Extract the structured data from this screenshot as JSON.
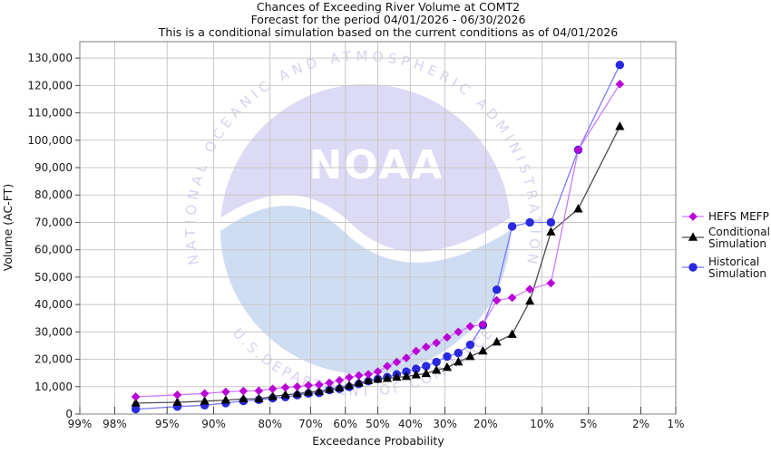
{
  "title": {
    "line1": "Chances of Exceeding River Volume at COMT2",
    "line2": "Forecast for the period 04/01/2026 - 06/30/2026",
    "line3": "This is a conditional simulation based on the current conditions as of 04/01/2026"
  },
  "watermark": {
    "ring_top": "NATIONAL OCEANIC AND ATMOSPHERIC ADMINISTRATION",
    "ring_bottom": "U.S.DEPARTMENT OF COMMERCE",
    "noaa_text": "NOAA"
  },
  "chart_data": {
    "type": "line",
    "title": "Chances of Exceeding River Volume at COMT2",
    "xlabel": "Exceedance Probability",
    "ylabel": "Volume (AC-FT)",
    "x_scale": "normal-probability",
    "x_axis_reversed": true,
    "grid": true,
    "legend_position": "right-outside",
    "x_tick_percents": [
      99,
      98,
      95,
      90,
      80,
      70,
      60,
      50,
      40,
      30,
      20,
      10,
      5,
      2,
      1
    ],
    "y_ticks": [
      0,
      10000,
      20000,
      30000,
      40000,
      50000,
      60000,
      70000,
      80000,
      90000,
      100000,
      110000,
      120000,
      130000
    ],
    "ylim": [
      0,
      136000
    ],
    "probabilities_percent": [
      97.06,
      94.12,
      91.18,
      88.24,
      85.29,
      82.35,
      79.41,
      76.47,
      73.53,
      70.59,
      67.65,
      64.71,
      61.76,
      58.82,
      55.88,
      52.94,
      50.0,
      47.06,
      44.12,
      41.18,
      38.24,
      35.29,
      32.35,
      29.41,
      26.47,
      23.53,
      20.59,
      17.65,
      14.71,
      11.76,
      8.82,
      5.88,
      2.94
    ],
    "series": [
      {
        "name": "HEFS MEFP",
        "legend_lines": [
          "HEFS MEFP"
        ],
        "marker": "diamond",
        "marker_color": "#ba00d6",
        "line_color": "#cf7aff",
        "values": [
          6300,
          7000,
          7500,
          8100,
          8400,
          8500,
          9200,
          9700,
          10000,
          10500,
          10700,
          11400,
          12300,
          13400,
          14100,
          14500,
          15500,
          17500,
          19000,
          20500,
          23000,
          24500,
          26000,
          28000,
          30000,
          32000,
          32700,
          41500,
          42500,
          45600,
          47800,
          96500,
          120500
        ]
      },
      {
        "name": "Conditional Simulation",
        "legend_lines": [
          "Conditional",
          "Simulation"
        ],
        "marker": "triangle",
        "marker_color": "#000000",
        "line_color": "#4d4d4d",
        "values": [
          4000,
          4300,
          4700,
          5100,
          5500,
          5600,
          6400,
          7000,
          7400,
          8000,
          8300,
          9000,
          9600,
          10400,
          11300,
          12200,
          12700,
          13000,
          13400,
          13700,
          14300,
          14800,
          16000,
          17000,
          19000,
          21000,
          23000,
          26300,
          29100,
          41200,
          66500,
          74900,
          105000
        ]
      },
      {
        "name": "Historical Simulation",
        "legend_lines": [
          "Historical",
          "Simulation"
        ],
        "marker": "circle",
        "marker_color": "#2929e0",
        "line_color": "#7a7aff",
        "values": [
          1800,
          2700,
          3200,
          4000,
          4800,
          5200,
          5800,
          6200,
          6900,
          7500,
          7700,
          8800,
          9200,
          9900,
          11000,
          12000,
          12800,
          13500,
          14500,
          15500,
          16500,
          17500,
          19000,
          21000,
          22300,
          25300,
          32500,
          45400,
          68500,
          70000,
          70000,
          96500,
          127500
        ]
      }
    ],
    "colors": {
      "gridline": "#c8c8c8",
      "plot_border": "#7f7f7f",
      "tick": "#444444",
      "watermark_lavender": "#dcdaf4",
      "watermark_blue": "#cfddf2"
    }
  }
}
